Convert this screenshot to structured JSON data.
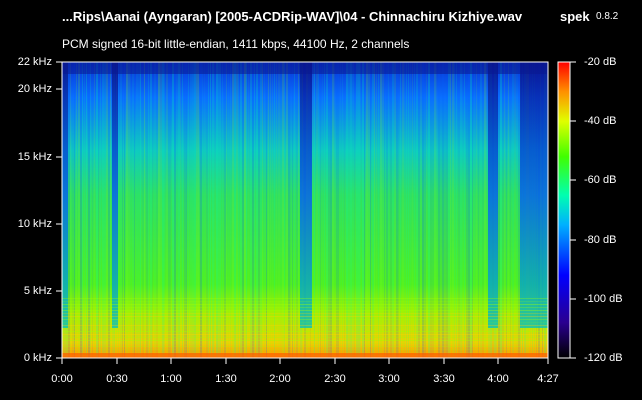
{
  "title": "...Rips\\Aanai (Ayngaran) [2005-ACDRip-WAV]\\04 - Chinnachiru Kizhiye.wav",
  "app": {
    "name": "spek",
    "version": "0.8.2"
  },
  "info": "PCM signed 16-bit little-endian, 1411 kbps, 44100 Hz, 2 channels",
  "frequency_axis": [
    {
      "label": "22 kHz",
      "value": 22
    },
    {
      "label": "20 kHz",
      "value": 20
    },
    {
      "label": "15 kHz",
      "value": 15
    },
    {
      "label": "10 kHz",
      "value": 10
    },
    {
      "label": "5 kHz",
      "value": 5
    },
    {
      "label": "0 kHz",
      "value": 0
    }
  ],
  "time_axis": [
    {
      "label": "0:00",
      "value": 0
    },
    {
      "label": "0:30",
      "value": 30
    },
    {
      "label": "1:00",
      "value": 60
    },
    {
      "label": "1:30",
      "value": 90
    },
    {
      "label": "2:00",
      "value": 120
    },
    {
      "label": "2:30",
      "value": 150
    },
    {
      "label": "3:00",
      "value": 180
    },
    {
      "label": "3:30",
      "value": 210
    },
    {
      "label": "4:00",
      "value": 240
    },
    {
      "label": "4:27",
      "value": 267
    }
  ],
  "db_scale": [
    {
      "label": "-20 dB",
      "value": -20
    },
    {
      "label": "-40 dB",
      "value": -40
    },
    {
      "label": "-60 dB",
      "value": -60
    },
    {
      "label": "-80 dB",
      "value": -80
    },
    {
      "label": "-100 dB",
      "value": -100
    },
    {
      "label": "-120 dB",
      "value": -120
    }
  ],
  "colors": {
    "background": "#000000",
    "text": "#ffffff",
    "palette": [
      "#000000",
      "#1a0070",
      "#0000ff",
      "#00a0ff",
      "#00ffc0",
      "#40ff00",
      "#e0ff00",
      "#ff9000",
      "#ff0000"
    ]
  }
}
